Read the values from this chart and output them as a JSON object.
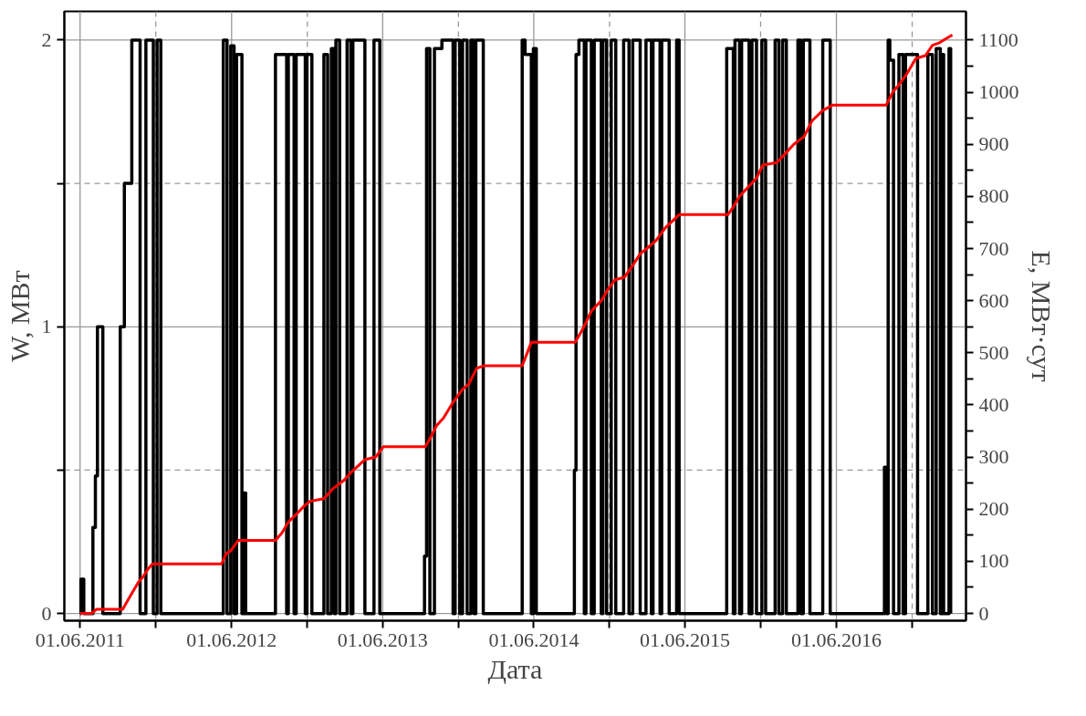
{
  "chart_data": {
    "type": "step",
    "xlabel": "Дата",
    "ylabel": "W, МВт",
    "y2label": "E, МВт·сут",
    "xlim": [
      "2011-04-24",
      "2017-04-10"
    ],
    "xticks": [
      {
        "value": "2011-06-01",
        "label": "01.06.2011"
      },
      {
        "value": "2011-12-01",
        "label": null
      },
      {
        "value": "2012-06-01",
        "label": "01.06.2012"
      },
      {
        "value": "2012-12-01",
        "label": null
      },
      {
        "value": "2013-06-01",
        "label": "01.06.2013"
      },
      {
        "value": "2013-12-01",
        "label": null
      },
      {
        "value": "2014-06-01",
        "label": "01.06.2014"
      },
      {
        "value": "2014-12-01",
        "label": null
      },
      {
        "value": "2015-06-01",
        "label": "01.06.2015"
      },
      {
        "value": "2015-12-01",
        "label": null
      },
      {
        "value": "2016-06-01",
        "label": "01.06.2016"
      },
      {
        "value": "2016-12-01",
        "label": null
      }
    ],
    "ylim": [
      -0.025,
      2.1
    ],
    "yticks": [
      0,
      {
        "value": 0.5,
        "label": null
      },
      1,
      {
        "value": 1.5,
        "label": null
      },
      2
    ],
    "y2lim": [
      -14,
      1155
    ],
    "y2ticks": [
      0,
      {
        "value": 50,
        "label": null
      },
      100,
      {
        "value": 150,
        "label": null
      },
      200,
      {
        "value": 250,
        "label": null
      },
      300,
      {
        "value": 350,
        "label": null
      },
      400,
      {
        "value": 450,
        "label": null
      },
      500,
      {
        "value": 550,
        "label": null
      },
      600,
      {
        "value": 650,
        "label": null
      },
      700,
      {
        "value": 750,
        "label": null
      },
      800,
      {
        "value": 850,
        "label": null
      },
      900,
      {
        "value": 950,
        "label": null
      },
      1000,
      {
        "value": 1050,
        "label": null
      },
      1100
    ],
    "grid": true,
    "series": [
      {
        "color": "#000000",
        "x": [
          "2011-06-01",
          "2011-06-03",
          "2011-06-10",
          "2011-07-02",
          "2011-07-08",
          "2011-07-13",
          "2011-07-26",
          "2011-09-06",
          "2011-09-16",
          "2011-10-04",
          "2011-10-24",
          "2011-11-07",
          "2011-11-25",
          "2011-12-04",
          "2011-12-13",
          "2012-05-12",
          "2012-05-21",
          "2012-05-30",
          "2012-06-07",
          "2012-06-13",
          "2012-06-26",
          "2012-07-01",
          "2012-07-05",
          "2012-09-15",
          "2012-10-12",
          "2012-10-16",
          "2012-10-30",
          "2012-11-04",
          "2012-11-26",
          "2012-11-30",
          "2012-12-12",
          "2013-01-10",
          "2013-01-19",
          "2013-01-28",
          "2013-02-04",
          "2013-02-08",
          "2013-02-17",
          "2013-03-07",
          "2013-03-16",
          "2013-03-21",
          "2013-04-19",
          "2013-05-11",
          "2013-05-25",
          "2013-09-10",
          "2013-09-15",
          "2013-09-23",
          "2013-10-04",
          "2013-10-22",
          "2013-11-18",
          "2013-11-23",
          "2013-12-04",
          "2013-12-11",
          "2013-12-22",
          "2013-12-31",
          "2014-01-07",
          "2014-01-12",
          "2014-01-30",
          "2014-05-04",
          "2014-05-11",
          "2014-05-26",
          "2014-05-31",
          "2014-06-07",
          "2014-09-07",
          "2014-09-11",
          "2014-09-18",
          "2014-10-01",
          "2014-10-05",
          "2014-10-18",
          "2014-10-25",
          "2014-11-11",
          "2014-11-15",
          "2014-11-24",
          "2014-12-05",
          "2014-12-16",
          "2015-01-04",
          "2015-01-17",
          "2015-01-26",
          "2015-02-13",
          "2015-02-27",
          "2015-03-12",
          "2015-03-16",
          "2015-04-02",
          "2015-04-06",
          "2015-04-24",
          "2015-05-12",
          "2015-05-18",
          "2015-09-10",
          "2015-09-26",
          "2015-09-30",
          "2015-10-11",
          "2015-10-16",
          "2015-11-03",
          "2015-11-10",
          "2015-11-21",
          "2015-12-04",
          "2015-12-13",
          "2016-01-05",
          "2016-01-14",
          "2016-01-23",
          "2016-02-01",
          "2016-02-29",
          "2016-03-07",
          "2016-03-13",
          "2016-03-29",
          "2016-04-29",
          "2016-05-17",
          "2016-09-25",
          "2016-09-29",
          "2016-10-04",
          "2016-10-08",
          "2016-10-17",
          "2016-10-30",
          "2016-11-09",
          "2016-11-15",
          "2016-12-14",
          "2017-01-08",
          "2017-01-19",
          "2017-01-28",
          "2017-02-07",
          "2017-02-11",
          "2017-02-15",
          "2017-02-28",
          "2017-03-04"
        ],
        "values": [
          0,
          0.12,
          0,
          0.3,
          0.48,
          1.0,
          0,
          1.0,
          1.5,
          2.0,
          0,
          2.0,
          0,
          2.0,
          0,
          2.0,
          0,
          1.98,
          0,
          1.95,
          0,
          0.42,
          0,
          1.95,
          0,
          1.95,
          0,
          1.95,
          0,
          1.95,
          0,
          1.95,
          0,
          1.97,
          0,
          2.0,
          0,
          2.0,
          0,
          2.0,
          0,
          2.0,
          0,
          0.2,
          1.97,
          0,
          1.97,
          2.0,
          0,
          2.0,
          0,
          2.0,
          0,
          2.0,
          0,
          2.0,
          0,
          2.0,
          1.95,
          0,
          1.97,
          0,
          0.5,
          1.95,
          2.0,
          0,
          2.0,
          0,
          2.0,
          0,
          2.0,
          0,
          2.0,
          0,
          2.0,
          0,
          2.0,
          0,
          2.0,
          0,
          2.0,
          0,
          2.0,
          0,
          2.0,
          0,
          1.97,
          0,
          2.0,
          0,
          2.0,
          0,
          2.0,
          0,
          2.0,
          0,
          2.0,
          0,
          2.0,
          0,
          2.0,
          0,
          2.0,
          0,
          2.0,
          0,
          0.51,
          0,
          2.0,
          1.93,
          0,
          1.95,
          0,
          1.95,
          0,
          1.95,
          0,
          1.97,
          0,
          1.95,
          0,
          1.97,
          0
        ]
      },
      {
        "type": "line",
        "axis": "y2",
        "color": "#ff0000",
        "x": [
          "2011-06-01",
          "2011-06-29",
          "2011-07-11",
          "2011-09-12",
          "2011-09-28",
          "2011-10-09",
          "2011-10-20",
          "2011-10-31",
          "2011-11-12",
          "2011-11-23",
          "2012-05-08",
          "2012-05-19",
          "2012-05-30",
          "2012-06-17",
          "2012-09-15",
          "2012-10-01",
          "2012-10-16",
          "2012-11-04",
          "2012-11-22",
          "2012-12-07",
          "2013-01-10",
          "2013-02-02",
          "2013-02-27",
          "2013-03-16",
          "2013-04-19",
          "2013-05-15",
          "2013-06-03",
          "2013-09-12",
          "2013-09-23",
          "2013-10-09",
          "2013-10-26",
          "2013-11-18",
          "2013-12-11",
          "2013-12-26",
          "2014-01-14",
          "2014-01-30",
          "2014-05-04",
          "2014-05-26",
          "2014-09-09",
          "2014-09-27",
          "2014-10-18",
          "2014-11-11",
          "2014-11-26",
          "2014-12-14",
          "2015-01-06",
          "2015-01-28",
          "2015-02-13",
          "2015-03-01",
          "2015-03-23",
          "2015-04-15",
          "2015-05-18",
          "2015-09-13",
          "2015-09-26",
          "2015-10-11",
          "2015-11-03",
          "2015-11-21",
          "2015-12-06",
          "2016-01-09",
          "2016-01-27",
          "2016-02-19",
          "2016-03-15",
          "2016-04-03",
          "2016-04-29",
          "2016-05-22",
          "2016-09-29",
          "2016-10-15",
          "2016-10-26",
          "2016-11-18",
          "2016-12-10",
          "2017-01-02",
          "2017-01-19",
          "2017-02-05",
          "2017-03-08"
        ],
        "values": [
          0,
          0,
          8,
          8,
          30,
          45,
          60,
          70,
          85,
          95,
          95,
          115,
          120,
          140,
          140,
          155,
          175,
          190,
          205,
          215,
          220,
          240,
          255,
          270,
          295,
          300,
          320,
          320,
          335,
          360,
          375,
          405,
          430,
          440,
          470,
          475,
          475,
          520,
          520,
          545,
          580,
          600,
          620,
          640,
          645,
          670,
          690,
          700,
          715,
          740,
          765,
          765,
          780,
          800,
          820,
          835,
          860,
          865,
          880,
          900,
          915,
          945,
          965,
          975,
          975,
          1000,
          1010,
          1035,
          1065,
          1070,
          1090,
          1095,
          1110
        ]
      }
    ]
  }
}
